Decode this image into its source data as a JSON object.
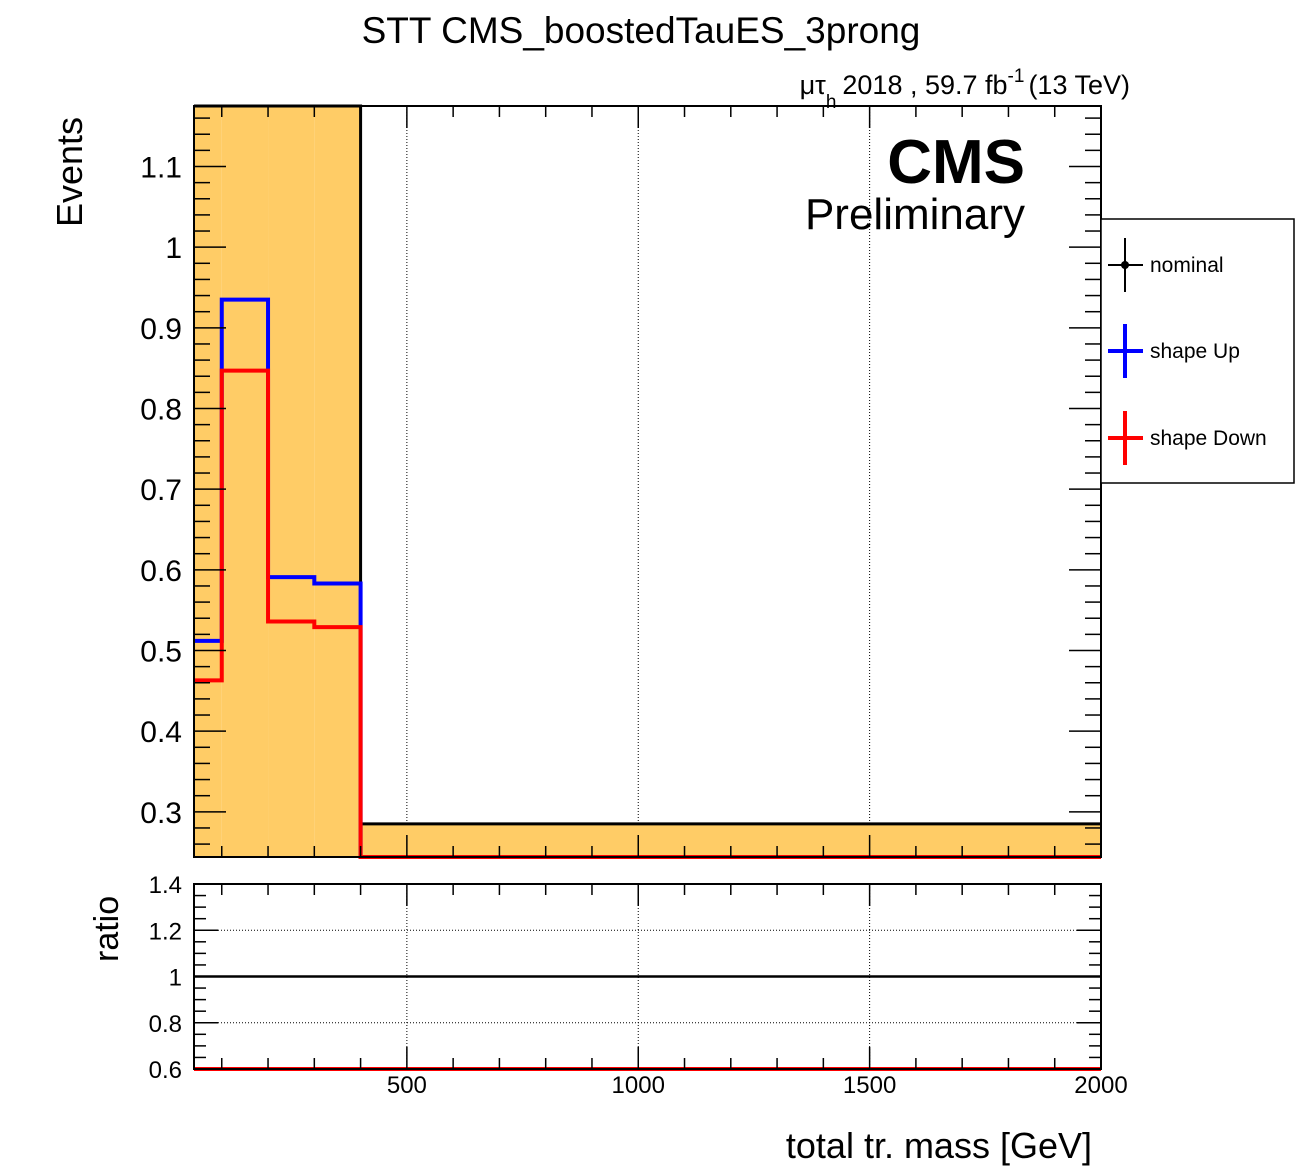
{
  "chart_data": {
    "type": "line",
    "title": "STT CMS_boostedTauES_3prong",
    "lumi": {
      "channel_prefix": "μτ",
      "channel_sub": "h",
      "text": "2018 , 59.7 fb",
      "sup": "-1",
      "energy": "(13 TeV)"
    },
    "cms_label": "CMS",
    "cms_sublabel": "Preliminary",
    "xlabel": "total tr. mass [GeV]",
    "ylabel": "Events",
    "ratio_ylabel": "ratio",
    "xlim": [
      40,
      2000
    ],
    "ylim": [
      0.244,
      1.175
    ],
    "ratio_ylim": [
      0.6,
      1.4
    ],
    "x_ticks": [
      "500",
      "1000",
      "1500",
      "2000"
    ],
    "x_tick_values": [
      500,
      1000,
      1500,
      2000
    ],
    "y_ticks": [
      "0.3",
      "0.4",
      "0.5",
      "0.6",
      "0.7",
      "0.8",
      "0.9",
      "1",
      "1.1"
    ],
    "y_tick_values": [
      0.3,
      0.4,
      0.5,
      0.6,
      0.7,
      0.8,
      0.9,
      1.0,
      1.1
    ],
    "ratio_y_ticks": [
      "0.6",
      "0.8",
      "1",
      "1.2",
      "1.4"
    ],
    "ratio_y_tick_values": [
      0.6,
      0.8,
      1.0,
      1.2,
      1.4
    ],
    "grid": true,
    "legend_position": "right",
    "bin_edges": [
      40,
      100,
      200,
      300,
      400,
      2000
    ],
    "band": {
      "name": "uncertainty",
      "color": "#ffcc66",
      "low": [
        0.244,
        0.244,
        0.244,
        0.244,
        0.244
      ],
      "high": [
        1.175,
        1.175,
        1.175,
        1.175,
        0.285
      ]
    },
    "series": [
      {
        "name": "nominal",
        "color": "#000000",
        "values": [
          1.175,
          1.175,
          1.175,
          1.175,
          0.285
        ]
      },
      {
        "name": "shape Up",
        "color": "#0000ff",
        "values": [
          0.512,
          0.935,
          0.591,
          0.583,
          0.244
        ]
      },
      {
        "name": "shape Down",
        "color": "#ff0000",
        "values": [
          0.463,
          0.847,
          0.536,
          0.529,
          0.244
        ]
      }
    ],
    "ratio_series": [
      {
        "name": "nominal",
        "color": "#000000",
        "values": [
          1.0,
          1.0,
          1.0,
          1.0,
          1.0
        ]
      },
      {
        "name": "shape Down",
        "color": "#ff0000",
        "values": [
          0.6,
          0.6,
          0.6,
          0.6,
          0.6
        ]
      }
    ]
  }
}
